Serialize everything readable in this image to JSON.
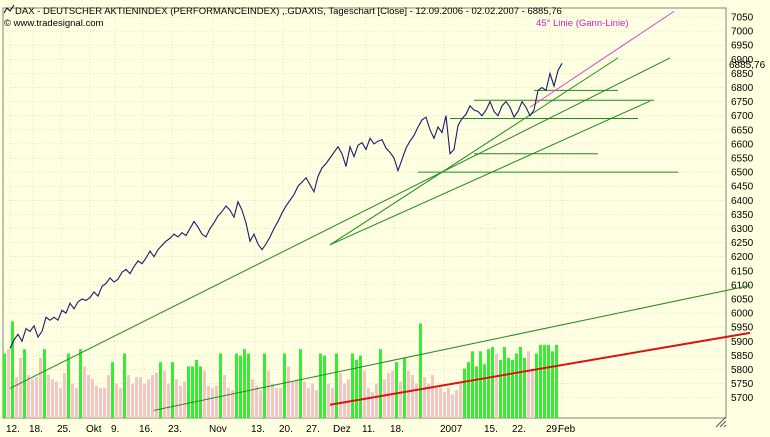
{
  "header": {
    "title": "DAX  - DEUTSCHER AKTIENINDEX (PERFORMANCEINDEX) ,.GDAXIS, Tageschart [Close] - 12.09.2006 - 02.02.2007 - 6885,76",
    "website": "© www.tradesignal.com",
    "title_icon": "line-chart-icon",
    "website_icon": "copyright-icon"
  },
  "annotations": {
    "gann_label": "45° Linie (Gann-Linie)",
    "last_value": "6885,76"
  },
  "colors": {
    "background": "#ffffe1",
    "price_line": "#1a1a70",
    "trend_lines": "#1e8c1e",
    "gann_line": "#e040d0",
    "support_line": "#e01010",
    "volume_up": "#33ee33",
    "volume_down": "#f3c6c6",
    "grid": "#c8c8b4"
  },
  "chart_data": {
    "type": "line",
    "y_ticks": [
      "7050",
      "7000",
      "6950",
      "6900",
      "6850",
      "6800",
      "6750",
      "6700",
      "6650",
      "6600",
      "6550",
      "6500",
      "6450",
      "6400",
      "6350",
      "6300",
      "6250",
      "6200",
      "6150",
      "6100",
      "6050",
      "6000",
      "5950",
      "5900",
      "5850",
      "5800",
      "5750",
      "5700"
    ],
    "x_labels": [
      "12.",
      "18.",
      "25.",
      "Okt",
      "9.",
      "16.",
      "23.",
      "Nov",
      "13.",
      "20.",
      "27.",
      "Dez",
      "11.",
      "18.",
      "2007",
      "15.",
      "22.",
      "29.",
      "Feb"
    ],
    "ylim": [
      5680,
      7070
    ],
    "grid": true,
    "series": [
      {
        "values": [
          5875,
          5905,
          5925,
          5900,
          5945,
          5935,
          5955,
          5915,
          5935,
          5985,
          5975,
          5985,
          5975,
          6010,
          6000,
          6035,
          6015,
          6040,
          6050,
          6045,
          6055,
          6075,
          6060,
          6095,
          6105,
          6125,
          6110,
          6120,
          6145,
          6155,
          6140,
          6165,
          6185,
          6175,
          6195,
          6220,
          6200,
          6225,
          6240,
          6255,
          6265,
          6280,
          6270,
          6285,
          6275,
          6300,
          6325,
          6305,
          6280,
          6270,
          6300,
          6320,
          6345,
          6360,
          6380,
          6365,
          6340,
          6395,
          6365,
          6320,
          6255,
          6280,
          6245,
          6225,
          6245,
          6270,
          6300,
          6325,
          6355,
          6380,
          6400,
          6420,
          6450,
          6465,
          6480,
          6455,
          6430,
          6485,
          6515,
          6530,
          6550,
          6570,
          6590,
          6565,
          6520,
          6590,
          6555,
          6595,
          6605,
          6580,
          6620,
          6600,
          6610,
          6615,
          6585,
          6570,
          6550,
          6505,
          6545,
          6585,
          6610,
          6630,
          6660,
          6685,
          6695,
          6650,
          6620,
          6660,
          6640,
          6700,
          6565,
          6580,
          6665,
          6690,
          6705,
          6735,
          6720,
          6715,
          6700,
          6720,
          6750,
          6715,
          6700,
          6735,
          6750,
          6730,
          6695,
          6715,
          6750,
          6730,
          6700,
          6720,
          6790,
          6800,
          6790,
          6850,
          6805,
          6860,
          6885.76
        ]
      }
    ],
    "volume": [
      [
        150,
        1
      ],
      [
        160,
        0
      ],
      [
        225,
        1
      ],
      [
        95,
        0
      ],
      [
        140,
        0
      ],
      [
        160,
        1
      ],
      [
        100,
        0
      ],
      [
        90,
        0
      ],
      [
        95,
        0
      ],
      [
        140,
        0
      ],
      [
        160,
        1
      ],
      [
        100,
        0
      ],
      [
        90,
        0
      ],
      [
        85,
        0
      ],
      [
        70,
        0
      ],
      [
        105,
        0
      ],
      [
        150,
        1
      ],
      [
        80,
        0
      ],
      [
        70,
        0
      ],
      [
        160,
        1
      ],
      [
        120,
        0
      ],
      [
        100,
        0
      ],
      [
        90,
        0
      ],
      [
        75,
        0
      ],
      [
        70,
        0
      ],
      [
        70,
        0
      ],
      [
        100,
        0
      ],
      [
        130,
        1
      ],
      [
        80,
        0
      ],
      [
        70,
        0
      ],
      [
        150,
        1
      ],
      [
        100,
        0
      ],
      [
        80,
        0
      ],
      [
        95,
        0
      ],
      [
        95,
        0
      ],
      [
        80,
        0
      ],
      [
        90,
        0
      ],
      [
        100,
        0
      ],
      [
        105,
        0
      ],
      [
        130,
        1
      ],
      [
        110,
        0
      ],
      [
        80,
        0
      ],
      [
        130,
        1
      ],
      [
        90,
        0
      ],
      [
        75,
        0
      ],
      [
        85,
        0
      ],
      [
        120,
        1
      ],
      [
        120,
        1
      ],
      [
        135,
        1
      ],
      [
        120,
        1
      ],
      [
        110,
        0
      ],
      [
        75,
        0
      ],
      [
        70,
        0
      ],
      [
        75,
        0
      ],
      [
        150,
        1
      ],
      [
        100,
        0
      ],
      [
        70,
        0
      ],
      [
        65,
        0
      ],
      [
        150,
        1
      ],
      [
        145,
        1
      ],
      [
        160,
        1
      ],
      [
        150,
        1
      ],
      [
        90,
        0
      ],
      [
        75,
        0
      ],
      [
        65,
        0
      ],
      [
        150,
        1
      ],
      [
        110,
        0
      ],
      [
        80,
        0
      ],
      [
        70,
        0
      ],
      [
        70,
        0
      ],
      [
        150,
        1
      ],
      [
        120,
        0
      ],
      [
        85,
        0
      ],
      [
        90,
        0
      ],
      [
        160,
        1
      ],
      [
        85,
        0
      ],
      [
        70,
        0
      ],
      [
        80,
        0
      ],
      [
        65,
        0
      ],
      [
        150,
        1
      ],
      [
        145,
        1
      ],
      [
        80,
        0
      ],
      [
        70,
        0
      ],
      [
        150,
        1
      ],
      [
        105,
        0
      ],
      [
        80,
        0
      ],
      [
        90,
        0
      ],
      [
        150,
        1
      ],
      [
        135,
        1
      ],
      [
        145,
        1
      ],
      [
        110,
        0
      ],
      [
        70,
        0
      ],
      [
        60,
        0
      ],
      [
        80,
        0
      ],
      [
        160,
        1
      ],
      [
        90,
        0
      ],
      [
        105,
        0
      ],
      [
        110,
        0
      ],
      [
        130,
        1
      ],
      [
        85,
        0
      ],
      [
        140,
        1
      ],
      [
        110,
        0
      ],
      [
        100,
        0
      ],
      [
        80,
        0
      ],
      [
        220,
        1
      ],
      [
        95,
        0
      ],
      [
        80,
        0
      ],
      [
        100,
        0
      ],
      [
        70,
        0
      ],
      [
        70,
        0
      ],
      [
        60,
        0
      ],
      [
        70,
        0
      ],
      [
        55,
        0
      ],
      [
        65,
        0
      ],
      [
        80,
        0
      ],
      [
        115,
        1
      ],
      [
        130,
        1
      ],
      [
        155,
        1
      ],
      [
        120,
        1
      ],
      [
        155,
        1
      ],
      [
        125,
        1
      ],
      [
        160,
        1
      ],
      [
        165,
        1
      ],
      [
        150,
        0
      ],
      [
        135,
        1
      ],
      [
        165,
        1
      ],
      [
        140,
        1
      ],
      [
        135,
        1
      ],
      [
        150,
        1
      ],
      [
        165,
        1
      ],
      [
        140,
        1
      ],
      [
        155,
        0
      ],
      [
        115,
        0
      ],
      [
        150,
        1
      ],
      [
        170,
        1
      ],
      [
        170,
        1
      ],
      [
        170,
        1
      ],
      [
        155,
        1
      ],
      [
        170,
        1
      ]
    ],
    "horizontal_lines": [
      {
        "y": 6790,
        "x": [
          131,
          152
        ]
      },
      {
        "y": 6755,
        "x": [
          116,
          161
        ]
      },
      {
        "y": 6690,
        "x": [
          110,
          157
        ]
      },
      {
        "y": 6565,
        "x": [
          116,
          147
        ]
      },
      {
        "y": 6500,
        "x": [
          102,
          167
        ]
      }
    ],
    "trend_lines": [
      {
        "role": "trend",
        "from": [
          0,
          5733
        ],
        "to": [
          165,
          6905
        ]
      },
      {
        "role": "trend",
        "from": [
          80,
          6242
        ],
        "to": [
          152,
          6905
        ]
      },
      {
        "role": "trend",
        "from": [
          80,
          6242
        ],
        "to": [
          160,
          6752
        ]
      },
      {
        "role": "trend",
        "from": [
          36,
          5655
        ],
        "to": [
          185,
          6098
        ]
      },
      {
        "role": "gann",
        "from": [
          130,
          6730
        ],
        "to": [
          166,
          7070
        ]
      },
      {
        "role": "support",
        "from": [
          80,
          5675
        ],
        "to": [
          185,
          5930
        ]
      }
    ]
  }
}
